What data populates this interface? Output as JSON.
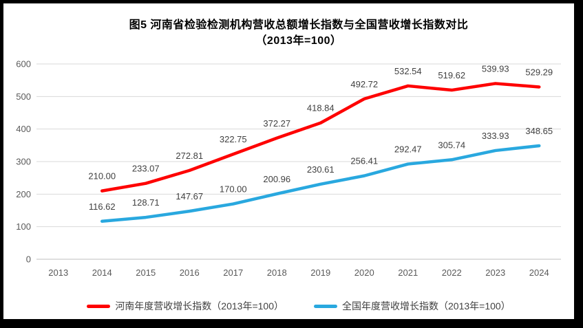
{
  "figure": {
    "border_color": "#000000",
    "background_color": "#ffffff"
  },
  "chart_data": {
    "type": "line",
    "title": "图5  河南省检验检测机构营收总额增长指数与全国营收增长指数对比（2013年=100）",
    "title_lines": [
      "图5  河南省检验检测机构营收总额增长指数与全国营收增长指数对比",
      "（2013年=100）"
    ],
    "categories": [
      "2013",
      "2014",
      "2015",
      "2016",
      "2017",
      "2018",
      "2019",
      "2020",
      "2021",
      "2022",
      "2023",
      "2024"
    ],
    "series": [
      {
        "name": "河南年度营收增长指数（2013年=100）",
        "color": "#FE0000",
        "values": [
          null,
          "210.00",
          "233.07",
          "272.81",
          "322.75",
          "372.27",
          "418.84",
          "492.72",
          "532.54",
          "519.62",
          "539.93",
          "529.29"
        ]
      },
      {
        "name": "全国年度营收增长指数（2013年=100）",
        "color": "#29A8DF",
        "values": [
          null,
          "116.62",
          "128.71",
          "147.67",
          "170.00",
          "200.96",
          "230.61",
          "256.41",
          "292.47",
          "305.74",
          "333.93",
          "348.65"
        ]
      }
    ],
    "ylim": [
      0,
      600
    ],
    "yticks": [
      "0",
      "100",
      "200",
      "300",
      "400",
      "500",
      "600"
    ],
    "grid": true,
    "gridline_color": "#D9D9D9",
    "axisline_color": "#BFBFBF",
    "legend_position": "bottom",
    "data_labels_shown": true
  }
}
